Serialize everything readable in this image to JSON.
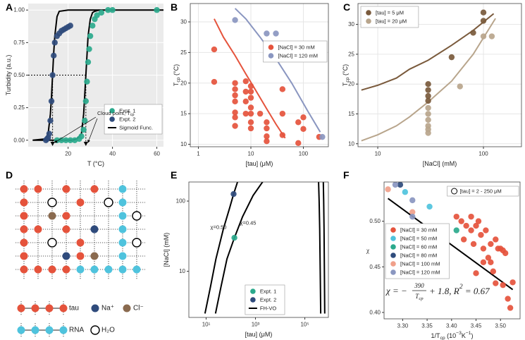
{
  "chart_data": [
    {
      "label": "A",
      "type": "scatter",
      "xlabel": "T (°C)",
      "ylabel": "Turbidity (a.u.)",
      "xscale": "linear",
      "yscale": "linear",
      "xlim": [
        2,
        63
      ],
      "ylim": [
        -0.05,
        1.05
      ],
      "xticks": [
        20,
        40,
        60
      ],
      "yticks": [
        {
          "value": 0,
          "label": "0.00"
        },
        0.25,
        {
          "value": 0.5,
          "label": "0.50"
        },
        0.75,
        {
          "value": 1,
          "label": "1.00"
        }
      ],
      "grid": true,
      "background": "#ebebeb",
      "legend": "lower right",
      "reference": {
        "y": 0.5,
        "x": [
          13,
          28
        ]
      },
      "annotation": [
        {
          "text": "Cloud point, T"
        },
        {
          "text": "cp",
          "sub": true
        }
      ],
      "series": [
        {
          "name": "Expt. 1",
          "color": "#2aa98c",
          "x": [
            15,
            17,
            19,
            21,
            23,
            25,
            26,
            27,
            27.5,
            28,
            28.5,
            29,
            29.5,
            30,
            31,
            32,
            33,
            35,
            38,
            40,
            60
          ],
          "values": [
            0,
            0,
            0,
            0,
            0,
            0.01,
            0.03,
            0.08,
            0.15,
            0.3,
            0.45,
            0.6,
            0.7,
            0.8,
            0.88,
            0.93,
            0.96,
            0.98,
            1,
            1,
            1
          ]
        },
        {
          "name": "Expt. 2",
          "color": "#2f4b7c",
          "x": [
            10,
            10.5,
            11,
            11.5,
            12,
            12.5,
            13,
            13.5,
            14,
            15,
            16,
            17,
            18,
            19,
            20,
            21
          ],
          "values": [
            0,
            0.01,
            0.02,
            0.05,
            0.15,
            0.3,
            0.5,
            0.65,
            0.75,
            0.8,
            0.82,
            0.84,
            0.85,
            0.86,
            0.87,
            0.88
          ]
        },
        {
          "name": "Sigmoid Func.",
          "color": "#000000",
          "mode": "line",
          "x": [
            4,
            10,
            11,
            12,
            12.5,
            13,
            13.5,
            14,
            15,
            16,
            20,
            63,
            null,
            4,
            22,
            24,
            26,
            27,
            28,
            29,
            30,
            31,
            32,
            34,
            40,
            63
          ],
          "values": [
            0,
            0.01,
            0.05,
            0.2,
            0.33,
            0.5,
            0.67,
            0.8,
            0.95,
            0.99,
            1,
            1,
            null,
            0,
            0,
            0.01,
            0.05,
            0.2,
            0.5,
            0.8,
            0.93,
            0.98,
            0.99,
            1,
            1,
            1
          ]
        }
      ]
    },
    {
      "label": "B",
      "type": "scatter",
      "xlabel": "[tau] (μM)",
      "ylabel": [
        {
          "text": "T"
        },
        {
          "text": "cp",
          "sub": true
        },
        {
          "text": " (°C)"
        }
      ],
      "xscale": "log",
      "yscale": "linear",
      "xlim": [
        0.7,
        300
      ],
      "ylim": [
        9.6,
        33
      ],
      "xticks": [
        1,
        10,
        100
      ],
      "yticks": [
        10,
        15,
        20,
        25,
        30
      ],
      "grid": true,
      "legend": "upper right",
      "series": [
        {
          "name": "[NaCl] = 30 mM",
          "color": "#e5533c",
          "x": [
            2,
            2,
            5,
            5,
            5,
            5,
            5,
            5,
            5,
            8,
            8,
            8,
            8,
            10,
            10,
            10,
            10,
            10,
            10,
            10,
            15,
            20,
            20,
            20,
            20,
            40,
            40,
            40,
            80,
            80,
            100,
            100,
            200
          ],
          "values": [
            25.5,
            20.2,
            20,
            19,
            18,
            17,
            15.2,
            14.4,
            13,
            20.3,
            18.6,
            17,
            15,
            19.5,
            18.6,
            17.6,
            16,
            15,
            13.6,
            12.6,
            15,
            13.6,
            12.6,
            11.3,
            10.5,
            19,
            15,
            11.5,
            13.6,
            10.2,
            14.4,
            12.5,
            11.2
          ]
        },
        {
          "name": "[NaCl] = 120 mM",
          "color": "#8a96c0",
          "x": [
            5,
            20,
            30,
            230
          ],
          "values": [
            30.3,
            28.1,
            28.1,
            11.2
          ]
        },
        {
          "color": "#e5533c",
          "mode": "line",
          "x": [
            2,
            3,
            5,
            8,
            12,
            20,
            30,
            45
          ],
          "values": [
            30.5,
            27.5,
            24.5,
            21.5,
            19,
            15.8,
            13.3,
            11
          ]
        },
        {
          "color": "#8a96c0",
          "mode": "line",
          "x": [
            5,
            8,
            15,
            30,
            60,
            120,
            210
          ],
          "values": [
            32.2,
            30.5,
            27.5,
            24,
            20,
            15.5,
            12
          ]
        }
      ]
    },
    {
      "label": "C",
      "type": "scatter",
      "xlabel": "[NaCl] (mM)",
      "ylabel": [
        {
          "text": "T"
        },
        {
          "text": "cp",
          "sub": true
        },
        {
          "text": " (°C)"
        }
      ],
      "xscale": "log",
      "yscale": "linear",
      "xlim": [
        6.5,
        229
      ],
      "ylim": [
        9.5,
        33.5
      ],
      "xticks": [
        10,
        100
      ],
      "yticks": [
        10,
        15,
        20,
        25,
        30
      ],
      "grid": true,
      "legend": "upper left",
      "series": [
        {
          "name": "[tau] = 5 μM",
          "color": "#7a5a3c",
          "x": [
            30,
            30,
            30,
            30,
            50,
            80,
            100,
            100
          ],
          "values": [
            20,
            19,
            18,
            17.2,
            24.5,
            28.6,
            32,
            30.6
          ]
        },
        {
          "name": "[tau] = 20 μM",
          "color": "#b8a58c",
          "x": [
            30,
            30,
            30,
            30,
            30,
            30,
            60,
            100,
            120
          ],
          "values": [
            16,
            15,
            14,
            13,
            12.4,
            11.8,
            19.6,
            28,
            28
          ]
        },
        {
          "color": "#7a5a3c",
          "mode": "line",
          "x": [
            7,
            10,
            15,
            20,
            30,
            50,
            80,
            125
          ],
          "values": [
            19,
            19.8,
            21,
            22.5,
            24,
            26.5,
            29,
            31.8
          ]
        },
        {
          "color": "#b8a58c",
          "mode": "line",
          "x": [
            7,
            10,
            15,
            20,
            30,
            50,
            80,
            130
          ],
          "values": [
            10.5,
            11.5,
            13,
            14.5,
            17,
            20.5,
            25,
            31
          ]
        }
      ]
    },
    {
      "label": "E",
      "type": "scatter",
      "xlabel": "[tau] (μM)",
      "ylabel": "[NaCl] (mM)",
      "xscale": "log",
      "yscale": "log",
      "xlim": [
        2,
        900000
      ],
      "ylim": [
        2.2,
        187
      ],
      "xticks": [
        {
          "value": 10,
          "label": "10¹"
        },
        {
          "value": 1000,
          "label": "10³"
        },
        {
          "value": 100000,
          "label": "10⁵"
        }
      ],
      "yticks": [
        10,
        100
      ],
      "grid": false,
      "legend": "lower right",
      "annotations": [
        "χ=0.50",
        "χ=0.45"
      ],
      "series": [
        {
          "name": "Expt. 1",
          "color": "#2aa98c",
          "x": [
            140
          ],
          "values": [
            30
          ]
        },
        {
          "name": "Expt. 2",
          "color": "#2f4b7c",
          "x": [
            130
          ],
          "values": [
            126
          ]
        },
        {
          "name": "FH-VO",
          "color": "#000000",
          "mode": "line",
          "x": [
            9,
            15,
            25,
            50,
            90,
            130,
            190,
            null,
            24,
            40,
            70,
            140,
            300,
            800,
            2000,
            null,
            440000,
            420000,
            400000,
            380000,
            360000,
            null,
            640000,
            620000,
            600000,
            580000,
            560000
          ],
          "values": [
            2.5,
            6,
            15,
            40,
            80,
            126,
            190,
            null,
            2.5,
            6,
            15,
            30,
            60,
            120,
            190,
            null,
            2.5,
            10,
            40,
            100,
            190,
            null,
            2.5,
            10,
            40,
            100,
            190
          ]
        }
      ]
    },
    {
      "label": "F",
      "type": "scatter",
      "xlabel": [
        {
          "text": "1/T"
        },
        {
          "text": "cp",
          "sub": true
        },
        {
          "text": " (10"
        },
        {
          "text": "−3",
          "sup": true
        },
        {
          "text": "K"
        },
        {
          "text": "−1",
          "sup": true
        },
        {
          "text": ")"
        }
      ],
      "ylabel": "χ",
      "xscale": "linear",
      "yscale": "linear",
      "xlim": [
        3.262,
        3.54
      ],
      "ylim": [
        0.393,
        0.543
      ],
      "xticks": [
        {
          "value": 3.3,
          "label": "3.30"
        },
        3.35,
        {
          "value": 3.4,
          "label": "3.40"
        },
        3.45,
        {
          "value": 3.5,
          "label": "3.50"
        }
      ],
      "yticks": [
        {
          "value": 0.4,
          "label": "0.40"
        },
        0.45,
        {
          "value": 0.5,
          "label": "0.50"
        }
      ],
      "grid": false,
      "legend": "lower left",
      "note": "[tau] = 2 - 250 μM",
      "equation": {
        "lhs": "χ = −",
        "numerator": "390",
        "denominator": [
          {
            "text": "T"
          },
          {
            "text": "cp",
            "sub": true
          }
        ],
        "rhs": [
          {
            "text": "+ 1.8,  R"
          },
          {
            "text": "2",
            "sup": true
          },
          {
            "text": " = 0.67"
          }
        ]
      },
      "series": [
        {
          "name": "[NaCl] = 30 mM",
          "color": "#e5533c",
          "x": [
            3.41,
            3.42,
            3.425,
            3.43,
            3.44,
            3.44,
            3.445,
            3.45,
            3.455,
            3.46,
            3.465,
            3.47,
            3.475,
            3.48,
            3.48,
            3.485,
            3.49,
            3.495,
            3.5,
            3.505,
            3.51,
            3.49,
            3.505,
            3.515,
            3.52,
            3.525,
            3.465,
            3.45
          ],
          "values": [
            0.505,
            0.5,
            0.48,
            0.495,
            0.505,
            0.49,
            0.475,
            0.495,
            0.5,
            0.485,
            0.47,
            0.49,
            0.46,
            0.475,
            0.455,
            0.445,
            0.48,
            0.47,
            0.47,
            0.468,
            0.465,
            0.432,
            0.43,
            0.415,
            0.405,
            0.433,
            0.455,
            0.443
          ]
        },
        {
          "name": "[NaCl] = 50 mM",
          "color": "#4fc3dd",
          "x": [
            3.305,
            3.355
          ],
          "values": [
            0.532,
            0.516
          ]
        },
        {
          "name": "[NaCl] = 60 mM",
          "color": "#2aa98c",
          "x": [
            3.41
          ],
          "values": [
            0.49
          ]
        },
        {
          "name": "[NaCl] = 80 mM",
          "color": "#2f4b7c",
          "x": [
            3.295
          ],
          "values": [
            0.54
          ]
        },
        {
          "name": "[NaCl] = 100 mM",
          "color": "#f0a08a",
          "x": [
            3.27,
            3.32
          ],
          "values": [
            0.535,
            0.51
          ]
        },
        {
          "name": "[NaCl] = 120 mM",
          "color": "#8a96c0",
          "x": [
            3.285,
            3.32,
            3.32
          ],
          "values": [
            0.54,
            0.523,
            0.505
          ]
        },
        {
          "color": "#000000",
          "mode": "line",
          "x": [
            3.27,
            3.525
          ],
          "values": [
            0.525,
            0.425
          ]
        }
      ]
    }
  ],
  "diagram": {
    "label": "D",
    "legend": [
      "tau",
      "Na⁺",
      "Cl⁻",
      "RNA",
      "H₂O"
    ]
  }
}
